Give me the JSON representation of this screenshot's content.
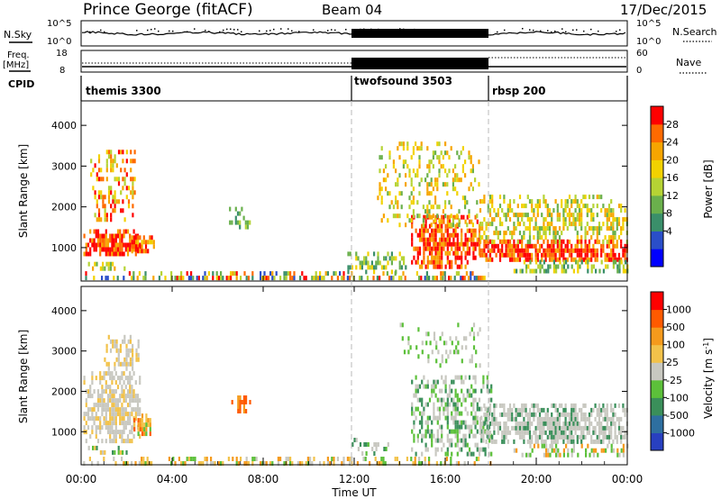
{
  "header": {
    "station": "Prince George (fitACF)",
    "beam": "Beam 04",
    "date": "17/Dec/2015"
  },
  "summary": {
    "nsky_label": "N.Sky",
    "nsky_ticks": [
      "10^5",
      "10^0"
    ],
    "nsearch_label": "N.Search",
    "freq_label": "Freq.",
    "freq_unit": "[MHz]",
    "freq_ticks": [
      "18",
      "8"
    ],
    "nave_ticks": [
      "60",
      "0"
    ],
    "nave_label": "Nave",
    "cpid_label": "CPID",
    "cpid_segments": [
      "themis 3300",
      "twofsound 3503",
      "rbsp 200"
    ]
  },
  "colors": {
    "power": [
      "#0000ff",
      "#2a4ec9",
      "#3a8f6a",
      "#6ab04c",
      "#b6d334",
      "#f2d200",
      "#f7a500",
      "#ff6a00",
      "#ff0000"
    ],
    "velocity": [
      "#2840c0",
      "#2e6fa0",
      "#3a8f5a",
      "#5cc03a",
      "#c8c8c0",
      "#f2c24a",
      "#f59a1c",
      "#ff5a00",
      "#ff0000"
    ],
    "ground": "#a0a0a0"
  },
  "chart_data": [
    {
      "type": "heatmap",
      "name": "power",
      "ylabel": "Slant Range [km]",
      "yticks": [
        "4000",
        "3000",
        "2000",
        "1000"
      ],
      "ylim": [
        180,
        4600
      ],
      "colorbar_label": "Power [dB]",
      "colorbar_ticks": [
        "28",
        "24",
        "20",
        "16",
        "12",
        "8",
        "4"
      ],
      "xlim": [
        0,
        24
      ],
      "blobs": [
        {
          "x": [
            0.1,
            2.6
          ],
          "y": [
            850,
            1450
          ],
          "levels": [
            9,
            8,
            7,
            6
          ],
          "density": 0.9
        },
        {
          "x": [
            0.4,
            2.4
          ],
          "y": [
            1700,
            3400
          ],
          "levels": [
            5,
            6,
            7,
            8,
            4
          ],
          "density": 0.45
        },
        {
          "x": [
            2.2,
            3.2
          ],
          "y": [
            900,
            1300
          ],
          "levels": [
            8,
            7,
            6,
            5
          ],
          "density": 0.8
        },
        {
          "x": [
            0.3,
            2.0
          ],
          "y": [
            450,
            650
          ],
          "levels": [
            5,
            6,
            4,
            3
          ],
          "density": 0.55
        },
        {
          "x": [
            6.5,
            7.5
          ],
          "y": [
            1500,
            2000
          ],
          "levels": [
            4,
            3,
            2
          ],
          "density": 0.5
        },
        {
          "x": [
            0,
            18
          ],
          "y": [
            200,
            420
          ],
          "levels": [
            1,
            2,
            3,
            4,
            5,
            6,
            7,
            8
          ],
          "density": 0.55
        },
        {
          "x": [
            11.7,
            14.3
          ],
          "y": [
            450,
            900
          ],
          "levels": [
            2,
            3,
            4,
            5
          ],
          "density": 0.45
        },
        {
          "x": [
            14.5,
            17.5
          ],
          "y": [
            500,
            1800
          ],
          "levels": [
            8,
            9,
            7,
            6
          ],
          "density": 0.8
        },
        {
          "x": [
            13,
            17.5
          ],
          "y": [
            1600,
            3600
          ],
          "levels": [
            3,
            4,
            5,
            6
          ],
          "density": 0.3
        },
        {
          "x": [
            17.5,
            24
          ],
          "y": [
            700,
            1200
          ],
          "levels": [
            8,
            9,
            7,
            6
          ],
          "density": 0.9
        },
        {
          "x": [
            17.5,
            24
          ],
          "y": [
            1150,
            2300
          ],
          "levels": [
            4,
            5,
            6,
            3
          ],
          "density": 0.55
        },
        {
          "x": [
            19,
            24
          ],
          "y": [
            400,
            700
          ],
          "levels": [
            2,
            3,
            4,
            5
          ],
          "density": 0.55
        }
      ]
    },
    {
      "type": "heatmap",
      "name": "velocity",
      "ylabel": "Slant Range [km]",
      "yticks": [
        "4000",
        "3000",
        "2000",
        "1000"
      ],
      "ylim": [
        180,
        4600
      ],
      "colorbar_label": "Velocity [m s^-1]",
      "colorbar_ticks": [
        "1000",
        "500",
        "100",
        "25",
        "-25",
        "-100",
        "-500",
        "-1000"
      ],
      "xlim": [
        0,
        24
      ],
      "xticks": [
        "00:00",
        "04:00",
        "08:00",
        "12:00",
        "16:00",
        "20:00",
        "00:00"
      ],
      "xlabel": "Time UT",
      "blobs": [
        {
          "x": [
            0.1,
            2.6
          ],
          "y": [
            750,
            2500
          ],
          "levels": [
            4,
            4,
            4,
            5
          ],
          "density": 0.8
        },
        {
          "x": [
            1.0,
            2.5
          ],
          "y": [
            2600,
            3400
          ],
          "levels": [
            4,
            5
          ],
          "density": 0.45
        },
        {
          "x": [
            2.3,
            3.1
          ],
          "y": [
            950,
            1450
          ],
          "levels": [
            6,
            7,
            3,
            5
          ],
          "density": 0.85
        },
        {
          "x": [
            0.3,
            2.0
          ],
          "y": [
            480,
            650
          ],
          "levels": [
            3,
            2,
            5,
            4
          ],
          "density": 0.5
        },
        {
          "x": [
            6.6,
            7.4
          ],
          "y": [
            1500,
            1900
          ],
          "levels": [
            7,
            6
          ],
          "density": 0.55
        },
        {
          "x": [
            0,
            18
          ],
          "y": [
            200,
            380
          ],
          "levels": [
            4,
            5,
            6,
            3
          ],
          "density": 0.5
        },
        {
          "x": [
            11.8,
            13.5
          ],
          "y": [
            450,
            850
          ],
          "levels": [
            2,
            3,
            4
          ],
          "density": 0.5
        },
        {
          "x": [
            14.5,
            18
          ],
          "y": [
            400,
            2400
          ],
          "levels": [
            4,
            4,
            3,
            2
          ],
          "density": 0.55
        },
        {
          "x": [
            14,
            17.5
          ],
          "y": [
            2600,
            3700
          ],
          "levels": [
            3,
            4
          ],
          "density": 0.2
        },
        {
          "x": [
            17.5,
            24
          ],
          "y": [
            700,
            1700
          ],
          "levels": [
            4,
            4,
            4,
            2
          ],
          "density": 0.8
        },
        {
          "x": [
            19,
            24
          ],
          "y": [
            400,
            700
          ],
          "levels": [
            4,
            3,
            6
          ],
          "density": 0.5
        }
      ]
    }
  ]
}
